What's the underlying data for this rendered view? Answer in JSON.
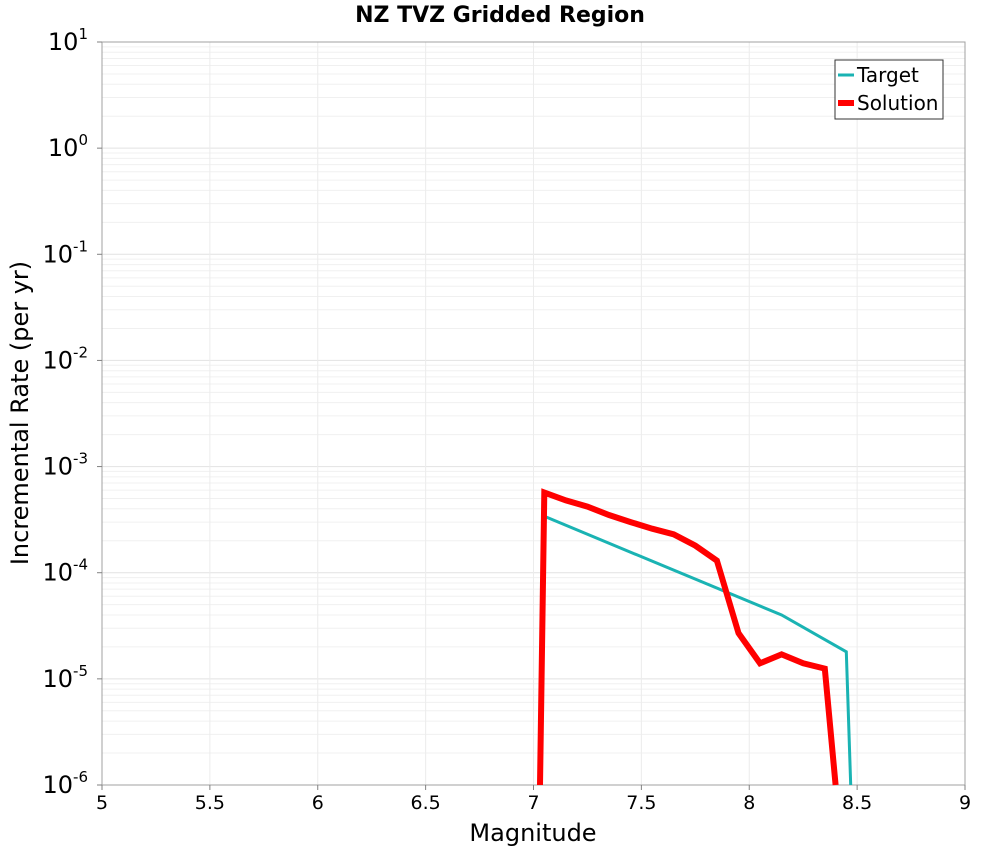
{
  "chart_data": {
    "type": "line",
    "title": "NZ TVZ Gridded Region",
    "xlabel": "Magnitude",
    "ylabel": "Incremental Rate (per yr)",
    "xlim": [
      5,
      9
    ],
    "ylim": [
      1e-06,
      10
    ],
    "yscale": "log",
    "grid": true,
    "legend_position": "top-right",
    "x_ticks": [
      "5",
      "5.5",
      "6",
      "6.5",
      "7",
      "7.5",
      "8",
      "8.5",
      "9"
    ],
    "y_ticks": [
      {
        "value": 1e-06,
        "base": "10",
        "exp": "-6"
      },
      {
        "value": 1e-05,
        "base": "10",
        "exp": "-5"
      },
      {
        "value": 0.0001,
        "base": "10",
        "exp": "-4"
      },
      {
        "value": 0.001,
        "base": "10",
        "exp": "-3"
      },
      {
        "value": 0.01,
        "base": "10",
        "exp": "-2"
      },
      {
        "value": 0.1,
        "base": "10",
        "exp": "-1"
      },
      {
        "value": 1,
        "base": "10",
        "exp": "0"
      },
      {
        "value": 10,
        "base": "10",
        "exp": "1"
      }
    ],
    "series": [
      {
        "name": "Target",
        "color": "#1ab3b3",
        "x": [
          7.05,
          8.15,
          8.45,
          8.47
        ],
        "values": [
          0.00034,
          4e-05,
          1.8e-05,
          1e-06
        ]
      },
      {
        "name": "Solution",
        "color": "#ff0000",
        "x": [
          7.03,
          7.05,
          7.15,
          7.25,
          7.35,
          7.45,
          7.55,
          7.65,
          7.75,
          7.85,
          7.95,
          8.05,
          8.15,
          8.25,
          8.35,
          8.4
        ],
        "values": [
          1e-06,
          0.00057,
          0.00048,
          0.00042,
          0.00035,
          0.0003,
          0.00026,
          0.00023,
          0.00018,
          0.00013,
          2.7e-05,
          1.4e-05,
          1.7e-05,
          1.4e-05,
          1.25e-05,
          1e-06
        ]
      }
    ]
  }
}
